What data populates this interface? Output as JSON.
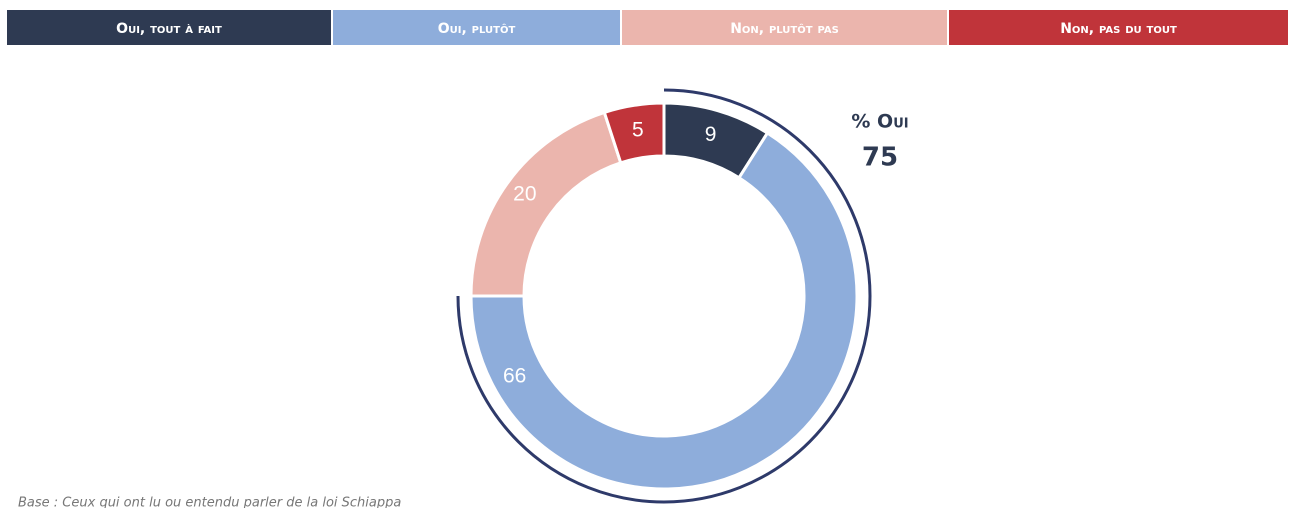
{
  "chart_data": {
    "type": "donut",
    "categories": [
      "Oui, tout à fait",
      "Oui, plutôt",
      "Non, plutôt pas",
      "Non, pas du tout"
    ],
    "values": [
      9,
      66,
      20,
      5
    ],
    "colors": [
      "#2e3a52",
      "#8eaddb",
      "#ebb5ad",
      "#c0343a"
    ],
    "annotation": {
      "label": "% Oui",
      "value": 75
    },
    "note": "Base : Ceux qui ont lu ou entendu parler de la loi Schiappa"
  }
}
